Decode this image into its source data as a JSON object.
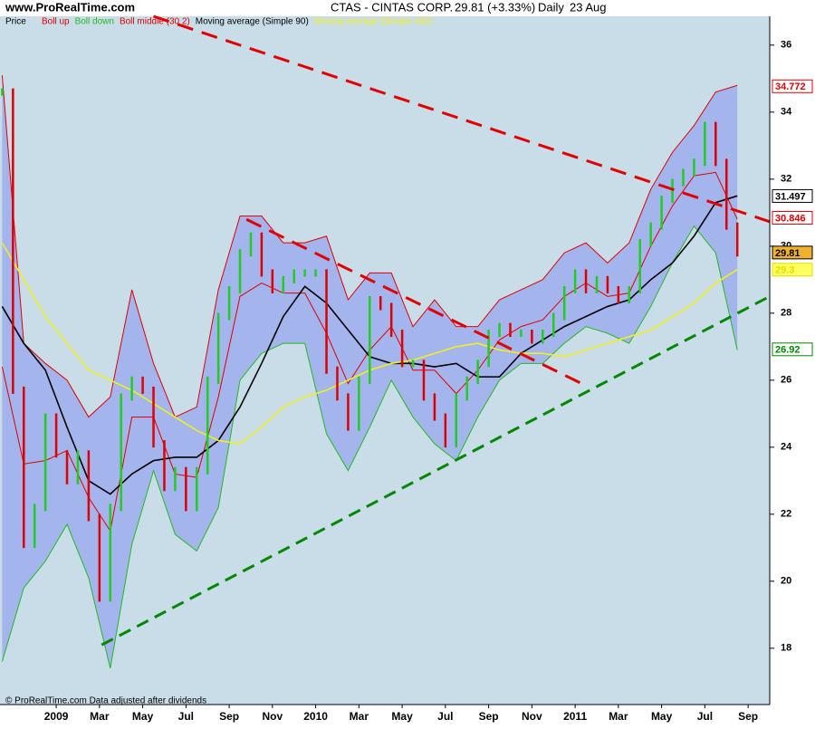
{
  "chart_data": {
    "type": "line",
    "site": "www.ProRealTime.com",
    "title": "CTAS - CINTAS CORP.",
    "quote": "29.81 (+3.33%)",
    "period": "Daily",
    "date": "23 Aug",
    "footer": "© ProRealTime.com Data adjusted after dividends",
    "xlim": [
      -2.6,
      33
    ],
    "ylim": [
      16.32,
      36.86
    ],
    "xticks": [
      {
        "value": 0,
        "label": "2009"
      },
      {
        "value": 2,
        "label": "Mar"
      },
      {
        "value": 4,
        "label": "May"
      },
      {
        "value": 6,
        "label": "Jul"
      },
      {
        "value": 8,
        "label": "Sep"
      },
      {
        "value": 10,
        "label": "Nov"
      },
      {
        "value": 12,
        "label": "2010"
      },
      {
        "value": 14,
        "label": "Mar"
      },
      {
        "value": 16,
        "label": "May"
      },
      {
        "value": 18,
        "label": "Jul"
      },
      {
        "value": 20,
        "label": "Sep"
      },
      {
        "value": 22,
        "label": "Nov"
      },
      {
        "value": 24,
        "label": "2011"
      },
      {
        "value": 26,
        "label": "Mar"
      },
      {
        "value": 28,
        "label": "May"
      },
      {
        "value": 30,
        "label": "Jul"
      },
      {
        "value": 32,
        "label": "Sep"
      }
    ],
    "yticks": [
      18,
      20,
      22,
      24,
      26,
      28,
      30,
      32,
      34,
      36
    ],
    "price": {
      "name": "Price",
      "up_color": "#22cc22",
      "down_color": "#dd0000",
      "last_value": 29.81,
      "label_color": "#000000",
      "label_bg": "#f0b030",
      "x": [
        -2.5,
        -2,
        -1.5,
        -1,
        -0.5,
        0,
        0.5,
        1,
        1.5,
        2,
        2.5,
        3,
        3.5,
        4,
        4.5,
        5,
        5.5,
        6,
        6.5,
        7,
        7.5,
        8,
        8.5,
        9,
        9.5,
        10,
        10.5,
        11,
        11.5,
        12,
        12.5,
        13,
        13.5,
        14,
        14.5,
        15,
        15.5,
        16,
        16.5,
        17,
        17.5,
        18,
        18.5,
        19,
        19.5,
        20,
        20.5,
        21,
        21.5,
        22,
        22.5,
        23,
        23.5,
        24,
        24.5,
        25,
        25.5,
        26,
        26.5,
        27,
        27.5,
        28,
        28.5,
        29,
        29.5,
        30,
        30.5,
        31,
        31.5
      ],
      "values": [
        34.6,
        25.7,
        21.1,
        22.2,
        24.9,
        23.8,
        23,
        23.8,
        21.9,
        19.5,
        22.2,
        25.5,
        26,
        25.7,
        24.1,
        22.8,
        23.3,
        22.2,
        23.3,
        26,
        27.9,
        28.7,
        29.8,
        30.3,
        29.2,
        28.7,
        29,
        29.2,
        29.2,
        29.2,
        26.3,
        25.5,
        24.6,
        26,
        28.4,
        28.2,
        27.4,
        26.5,
        26.5,
        25.5,
        24.9,
        24.1,
        25.5,
        26,
        26.5,
        27.4,
        27.6,
        27.4,
        27.4,
        27.2,
        27.4,
        27.9,
        28.7,
        29.2,
        28.7,
        29,
        28.7,
        28.4,
        28.7,
        30.1,
        30.6,
        31.4,
        31.9,
        32.2,
        32.5,
        33.6,
        32.5,
        30.6,
        29.8
      ]
    },
    "series": [
      {
        "name": "Boll up",
        "color": "#e00000",
        "width": 1,
        "last_value": 34.772,
        "label_color": "#e00000",
        "label_bg": "#ffffff",
        "x": [
          -2.5,
          -1.5,
          -0.5,
          0.5,
          1.5,
          2.5,
          3.5,
          4.5,
          5.5,
          6.5,
          7.5,
          8.5,
          9.5,
          10.5,
          11.5,
          12.5,
          13.5,
          14.5,
          15.5,
          16.5,
          17.5,
          18.5,
          19.5,
          20.5,
          21.5,
          22.5,
          23.5,
          24.5,
          25.5,
          26.5,
          27.5,
          28.5,
          29.5,
          30.5,
          31.5
        ],
        "values": [
          35.1,
          27.1,
          26.5,
          26,
          24.9,
          25.5,
          28.7,
          26.5,
          24.9,
          25.2,
          28.7,
          30.9,
          30.9,
          30.1,
          30.1,
          30.3,
          28.4,
          29.2,
          29.2,
          27.6,
          28.4,
          27.6,
          27.6,
          28.4,
          28.7,
          29,
          29.8,
          30.1,
          29.5,
          30.1,
          31.7,
          32.8,
          33.6,
          34.6,
          34.8
        ]
      },
      {
        "name": "Boll down",
        "color": "#22bb22",
        "width": 1,
        "last_value": 26.92,
        "label_color": "#008800",
        "label_bg": "#ffffff",
        "x": [
          -2.5,
          -1.5,
          -0.5,
          0.5,
          1.5,
          2.5,
          3.5,
          4.5,
          5.5,
          6.5,
          7.5,
          8.5,
          9.5,
          10.5,
          11.5,
          12.5,
          13.5,
          14.5,
          15.5,
          16.5,
          17.5,
          18.5,
          19.5,
          20.5,
          21.5,
          22.5,
          23.5,
          24.5,
          25.5,
          26.5,
          27.5,
          28.5,
          29.5,
          30.5,
          31.5
        ],
        "values": [
          17.6,
          19.8,
          20.6,
          21.7,
          20.1,
          17.4,
          21.1,
          23.3,
          21.4,
          20.9,
          22.2,
          26,
          26.8,
          27.1,
          27.1,
          24.4,
          23.3,
          24.6,
          26,
          24.9,
          24.1,
          23.6,
          24.9,
          26,
          26.5,
          26.5,
          27.1,
          27.6,
          27.4,
          27.1,
          28.2,
          29.5,
          30.6,
          29.8,
          26.9
        ]
      },
      {
        "name": "Boll middle (30 2)",
        "color": "#e00000",
        "width": 1,
        "last_value": 30.846,
        "label_color": "#e00000",
        "label_bg": "#ffffff",
        "x": [
          -2.5,
          -1.5,
          -0.5,
          0.5,
          1.5,
          2.5,
          3.5,
          4.5,
          5.5,
          6.5,
          7.5,
          8.5,
          9.5,
          10.5,
          11.5,
          12.5,
          13.5,
          14.5,
          15.5,
          16.5,
          17.5,
          18.5,
          19.5,
          20.5,
          21.5,
          22.5,
          23.5,
          24.5,
          25.5,
          26.5,
          27.5,
          28.5,
          29.5,
          30.5,
          31.5
        ],
        "values": [
          26.4,
          23.5,
          23.6,
          23.9,
          22.5,
          21.5,
          24.9,
          24.9,
          23.2,
          23.1,
          25.5,
          28.5,
          28.9,
          28.6,
          28.6,
          27.4,
          25.9,
          26.9,
          27.6,
          26.3,
          26.3,
          25.6,
          26.3,
          27.2,
          27.6,
          27.8,
          28.5,
          28.9,
          28.5,
          28.6,
          30,
          31.2,
          32.1,
          32.2,
          30.8
        ]
      },
      {
        "name": "Moving average (Simple 90)",
        "color": "#000000",
        "width": 1.6,
        "last_value": 31.497,
        "label_color": "#000000",
        "label_bg": "#ffffff",
        "x": [
          -2.5,
          -1.5,
          -0.5,
          0.5,
          1.5,
          2.5,
          3.5,
          4.5,
          5.5,
          6.5,
          7.5,
          8.5,
          9.5,
          10.5,
          11.5,
          12.5,
          13.5,
          14.5,
          15.5,
          16.5,
          17.5,
          18.5,
          19.5,
          20.5,
          21.5,
          22.5,
          23.5,
          24.5,
          25.5,
          26.5,
          27.5,
          28.5,
          29.5,
          30.5,
          31.5
        ],
        "values": [
          28.2,
          27.1,
          26.3,
          24.6,
          23,
          22.6,
          23.2,
          23.6,
          23.7,
          23.7,
          24.2,
          25.2,
          26.5,
          27.9,
          28.8,
          28.3,
          27.5,
          26.7,
          26.5,
          26.5,
          26.4,
          26.5,
          26.1,
          26.1,
          26.8,
          27.2,
          27.6,
          27.9,
          28.2,
          28.4,
          29,
          29.5,
          30.3,
          31.3,
          31.5
        ]
      },
      {
        "name": "Moving average (Simple 250)",
        "color": "#f0f020",
        "width": 1.6,
        "last_value": 29.3,
        "label_color": "#e0e000",
        "label_bg": "#ffff60",
        "x": [
          -2.5,
          -1.5,
          -0.5,
          0.5,
          1.5,
          2.5,
          3.5,
          4.5,
          5.5,
          6.5,
          7.5,
          8.5,
          9.5,
          10.5,
          11.5,
          12.5,
          13.5,
          14.5,
          15.5,
          16.5,
          17.5,
          18.5,
          19.5,
          20.5,
          21.5,
          22.5,
          23.5,
          24.5,
          25.5,
          26.5,
          27.5,
          28.5,
          29.5,
          30.5,
          31.5
        ],
        "values": [
          30.1,
          29,
          27.9,
          27.1,
          26.3,
          26,
          25.7,
          25.3,
          24.9,
          24.5,
          24.2,
          24.1,
          24.6,
          25.2,
          25.5,
          25.7,
          26,
          26.3,
          26.5,
          26.6,
          26.8,
          27,
          27.1,
          26.9,
          26.8,
          26.8,
          26.7,
          26.9,
          27.1,
          27.3,
          27.5,
          27.9,
          28.3,
          28.9,
          29.3
        ]
      }
    ],
    "band_color": "#a4b4ec",
    "background": "#c9dde8",
    "trendlines": [
      {
        "color": "#e00000",
        "dash": "18 10",
        "x": [
          4.5,
          33
        ],
        "y": [
          36.86,
          30.73
        ]
      },
      {
        "color": "#e00000",
        "dash": "18 10",
        "x": [
          8.8,
          24.3
        ],
        "y": [
          30.8,
          25.9
        ]
      },
      {
        "color": "#008800",
        "dash": "14 8",
        "x": [
          2.1,
          33
        ],
        "y": [
          18.1,
          28.5
        ]
      }
    ]
  }
}
